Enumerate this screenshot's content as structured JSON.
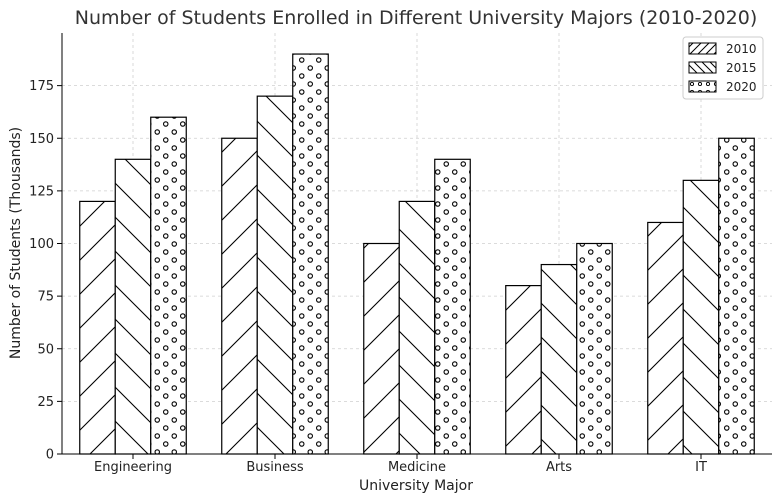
{
  "chart_data": {
    "type": "bar",
    "title": "Number of Students Enrolled in Different University Majors (2010-2020)",
    "xlabel": "University Major",
    "ylabel": "Number of Students (Thousands)",
    "categories": [
      "Engineering",
      "Business",
      "Medicine",
      "Arts",
      "IT"
    ],
    "series": [
      {
        "name": "2010",
        "values": [
          120,
          150,
          100,
          80,
          110
        ],
        "pattern": "forward-hatch"
      },
      {
        "name": "2015",
        "values": [
          140,
          170,
          120,
          90,
          130
        ],
        "pattern": "back-hatch"
      },
      {
        "name": "2020",
        "values": [
          160,
          190,
          140,
          100,
          150
        ],
        "pattern": "circles"
      }
    ],
    "ylim": [
      0,
      200
    ],
    "yticks": [
      0,
      25,
      50,
      75,
      100,
      125,
      150,
      175
    ],
    "grid": true,
    "legend_position": "top-right",
    "bar_fill": "#ffffff",
    "edge_color": "#000000"
  }
}
